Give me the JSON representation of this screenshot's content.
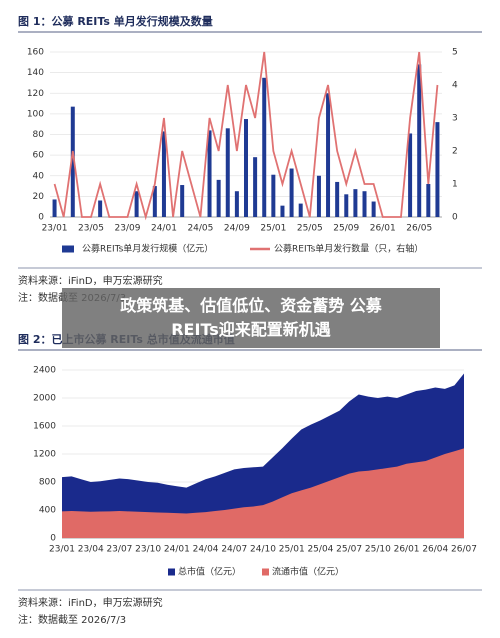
{
  "chart_data": [
    {
      "type": "bar",
      "title": "图 1：公募 REITs 单月发行规模及数量",
      "categories": [
        "23/01",
        null,
        null,
        null,
        "23/05",
        null,
        null,
        null,
        "23/09",
        null,
        null,
        null,
        "24/01",
        null,
        null,
        null,
        "24/05",
        null,
        null,
        null,
        "24/09",
        null,
        null,
        null,
        "25/01",
        null,
        null,
        null,
        "25/05",
        null,
        null,
        null,
        "25/09",
        null,
        null,
        null,
        "26/01",
        null,
        null,
        null,
        "26/05",
        null,
        null
      ],
      "series": [
        {
          "name": "公募REITs单月发行规模（亿元）",
          "color": "#1f3a93",
          "type": "bar",
          "values": [
            17,
            0,
            107,
            0,
            0,
            16,
            0,
            0,
            0,
            25,
            0,
            30,
            83,
            0,
            31,
            0,
            0,
            84,
            36,
            86,
            25,
            95,
            58,
            135,
            41,
            11,
            47,
            13,
            0,
            40,
            120,
            34,
            22,
            27,
            25,
            15,
            0,
            0,
            0,
            81,
            148,
            32,
            92
          ]
        },
        {
          "name": "公募REITs单月发行数量（只，右轴）",
          "color": "#e07272",
          "type": "line",
          "axis": "y2",
          "values": [
            1,
            0,
            2,
            0,
            0,
            1,
            0,
            0,
            0,
            1,
            0,
            1,
            3,
            0,
            2,
            1,
            0,
            3,
            2,
            4,
            2,
            4,
            3,
            5,
            2,
            1,
            2,
            1,
            0,
            3,
            4,
            2,
            1,
            2,
            1,
            1,
            0,
            0,
            0,
            3,
            5,
            1,
            4
          ]
        }
      ],
      "ylim": [
        0,
        160
      ],
      "yticks": [
        0,
        20,
        40,
        60,
        80,
        100,
        120,
        140,
        160
      ],
      "y2lim": [
        0,
        5
      ],
      "y2ticks": [
        0,
        1,
        2,
        3,
        4,
        5
      ],
      "source": "资料来源：iFinD，申万宏源研究",
      "note": "注：数据截至 2026/7/3"
    },
    {
      "type": "area",
      "title": "图 2：已上市公募 REITs 总市值及流通市值",
      "categories": [
        "23/01",
        null,
        null,
        "23/04",
        null,
        null,
        "23/07",
        null,
        null,
        "23/10",
        null,
        null,
        "24/01",
        null,
        null,
        "24/04",
        null,
        null,
        "24/07",
        null,
        null,
        "24/10",
        null,
        null,
        "25/01",
        null,
        null,
        "25/04",
        null,
        null,
        "25/07",
        null,
        null,
        "25/10",
        null,
        null,
        "26/01",
        null,
        null,
        "26/04",
        null,
        null,
        "26/07"
      ],
      "series": [
        {
          "name": "总市值（亿元）",
          "color": "#1a2a8c",
          "values": [
            870,
            880,
            840,
            800,
            810,
            830,
            850,
            840,
            820,
            800,
            790,
            760,
            740,
            720,
            780,
            840,
            880,
            930,
            980,
            1000,
            1010,
            1020,
            1150,
            1280,
            1420,
            1550,
            1620,
            1680,
            1750,
            1820,
            1950,
            2050,
            2020,
            2000,
            2020,
            2000,
            2050,
            2100,
            2120,
            2150,
            2130,
            2180,
            2350
          ]
        },
        {
          "name": "流通市值（亿元）",
          "color": "#e06a66",
          "values": [
            380,
            385,
            380,
            375,
            378,
            380,
            385,
            380,
            375,
            370,
            365,
            360,
            355,
            350,
            360,
            370,
            385,
            400,
            420,
            440,
            450,
            470,
            520,
            580,
            640,
            680,
            720,
            770,
            820,
            870,
            920,
            950,
            960,
            980,
            1000,
            1020,
            1060,
            1080,
            1100,
            1150,
            1200,
            1240,
            1280
          ]
        }
      ],
      "ylim": [
        0,
        2400
      ],
      "yticks": [
        0,
        400,
        800,
        1200,
        1600,
        2000,
        2400
      ],
      "source": "资料来源：iFinD，申万宏源研究",
      "note": "注：数据截至 2026/7/3"
    }
  ],
  "overlay": [
    "政策筑基、估值低位、资金蓄势 公募",
    "REITs迎来配置新机遇"
  ]
}
